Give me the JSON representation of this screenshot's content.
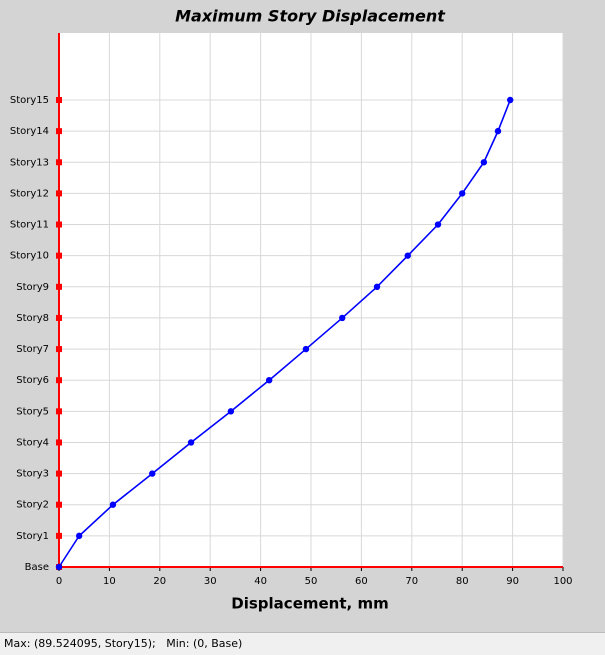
{
  "chart_data": {
    "type": "line",
    "orientation": "horizontal",
    "title": "Maximum Story Displacement",
    "x_label": "Displacement, mm",
    "categories": [
      "Base",
      "Story1",
      "Story2",
      "Story3",
      "Story4",
      "Story5",
      "Story6",
      "Story7",
      "Story8",
      "Story9",
      "Story10",
      "Story11",
      "Story12",
      "Story13",
      "Story14",
      "Story15"
    ],
    "values": [
      0,
      4.0,
      10.7,
      18.5,
      26.2,
      34.1,
      41.7,
      49.0,
      56.2,
      63.1,
      69.2,
      75.2,
      80.0,
      84.3,
      87.1,
      89.524095
    ],
    "color": "#0000ff",
    "axis_color": "#ff0000",
    "xlim": [
      0,
      100
    ],
    "xticks": [
      0,
      10,
      20,
      30,
      40,
      50,
      60,
      70,
      80,
      90,
      100
    ],
    "grid": true
  },
  "status_bar": {
    "text": "Max: (89.524095, Story15);   Min: (0, Base)"
  }
}
